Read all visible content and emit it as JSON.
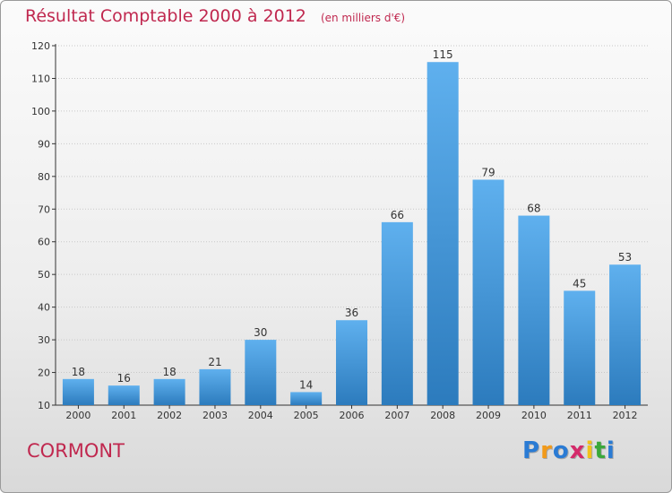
{
  "header": {
    "title": "Résultat Comptable 2000 à 2012",
    "unit": "(en milliers d'€)"
  },
  "commune": "CORMONT",
  "logo": {
    "letters": [
      "P",
      "r",
      "o",
      "x",
      "i",
      "t",
      "i"
    ],
    "colors": [
      "#2a7bd4",
      "#f29a1a",
      "#2a7bd4",
      "#d42a6a",
      "#f2c21a",
      "#3aa83a",
      "#2a7bd4"
    ]
  },
  "colors": {
    "bar_top": "#5fb0ee",
    "bar_bottom": "#2c7bbd",
    "title": "#c0284f",
    "axis": "#333333",
    "grid": "#c8c8c8"
  },
  "chart_data": {
    "type": "bar",
    "categories": [
      "2000",
      "2001",
      "2002",
      "2003",
      "2004",
      "2005",
      "2006",
      "2007",
      "2008",
      "2009",
      "2010",
      "2011",
      "2012"
    ],
    "values": [
      18,
      16,
      18,
      21,
      30,
      14,
      36,
      66,
      115,
      79,
      68,
      45,
      53
    ],
    "ylim": [
      10,
      120
    ],
    "yticks": [
      10,
      20,
      30,
      40,
      50,
      60,
      70,
      80,
      90,
      100,
      110,
      120
    ],
    "grid": true,
    "xlabel": "",
    "ylabel": ""
  }
}
